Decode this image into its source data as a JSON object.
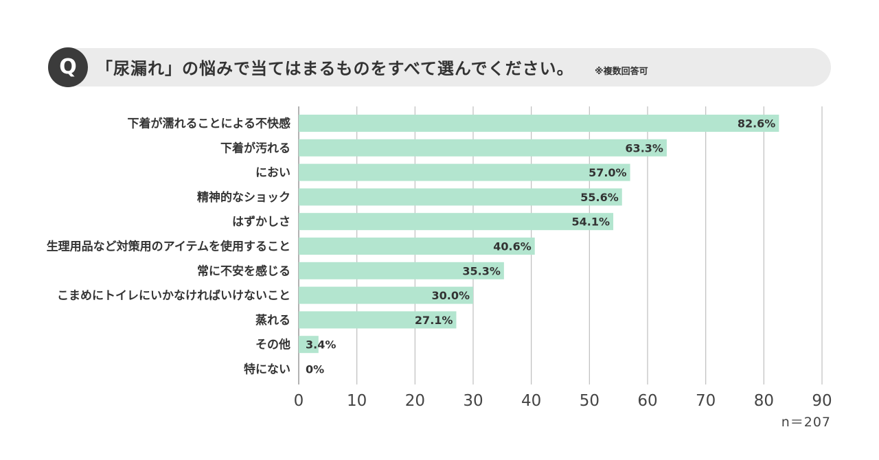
{
  "question": {
    "badge": "Q",
    "text": "「尿漏れ」の悩みで当てはまるものをすべて選んでください。",
    "note": "※複数回答可"
  },
  "sample_size": "n＝207",
  "colors": {
    "bar": "#b3e5cf",
    "grid": "#bdbdbd",
    "axis": "#999999",
    "header_bg": "#ebebeb",
    "badge_bg": "#3b3b3b"
  },
  "chart_data": {
    "type": "bar",
    "orientation": "horizontal",
    "title": "「尿漏れ」の悩みで当てはまるものをすべて選んでください。",
    "xlim": [
      0,
      90
    ],
    "ticks": [
      0,
      10,
      20,
      30,
      40,
      50,
      60,
      70,
      80,
      90
    ],
    "grid": true,
    "categories": [
      "下着が濡れることによる不快感",
      "下着が汚れる",
      "におい",
      "精神的なショック",
      "はずかしさ",
      "生理用品など対策用のアイテムを使用すること",
      "常に不安を感じる",
      "こまめにトイレにいかなければいけないこと",
      "蒸れる",
      "その他",
      "特にない"
    ],
    "values": [
      82.6,
      63.3,
      57.0,
      55.6,
      54.1,
      40.6,
      35.3,
      30.0,
      27.1,
      3.4,
      0
    ],
    "value_labels": [
      "82.6%",
      "63.3%",
      "57.0%",
      "55.6%",
      "54.1%",
      "40.6%",
      "35.3%",
      "30.0%",
      "27.1%",
      "3.4%",
      "0%"
    ]
  }
}
